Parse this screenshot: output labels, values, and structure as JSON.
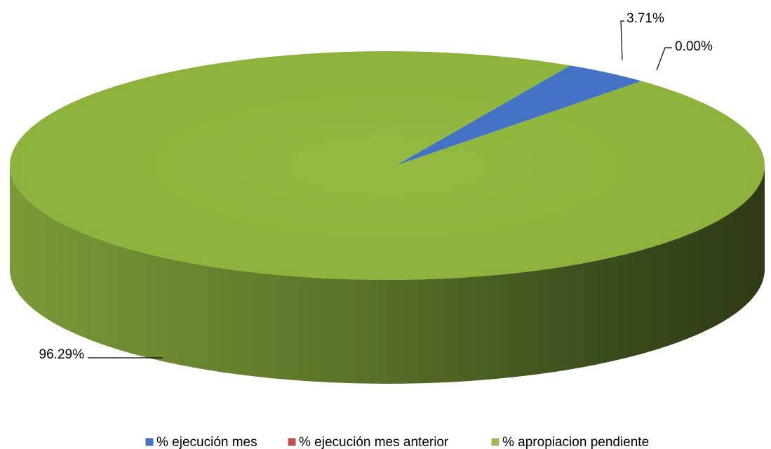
{
  "chart_data": {
    "type": "pie",
    "categories": [
      "% ejecución mes",
      "% ejecución mes anterior",
      "% apropiacion pendiente"
    ],
    "values": [
      3.71,
      0.0,
      96.29
    ],
    "value_labels": [
      "3.71%",
      "0.00%",
      "96.29%"
    ],
    "colors": [
      "#4472c4",
      "#c0504d",
      "#9bbb59"
    ],
    "legend": "bottom"
  }
}
